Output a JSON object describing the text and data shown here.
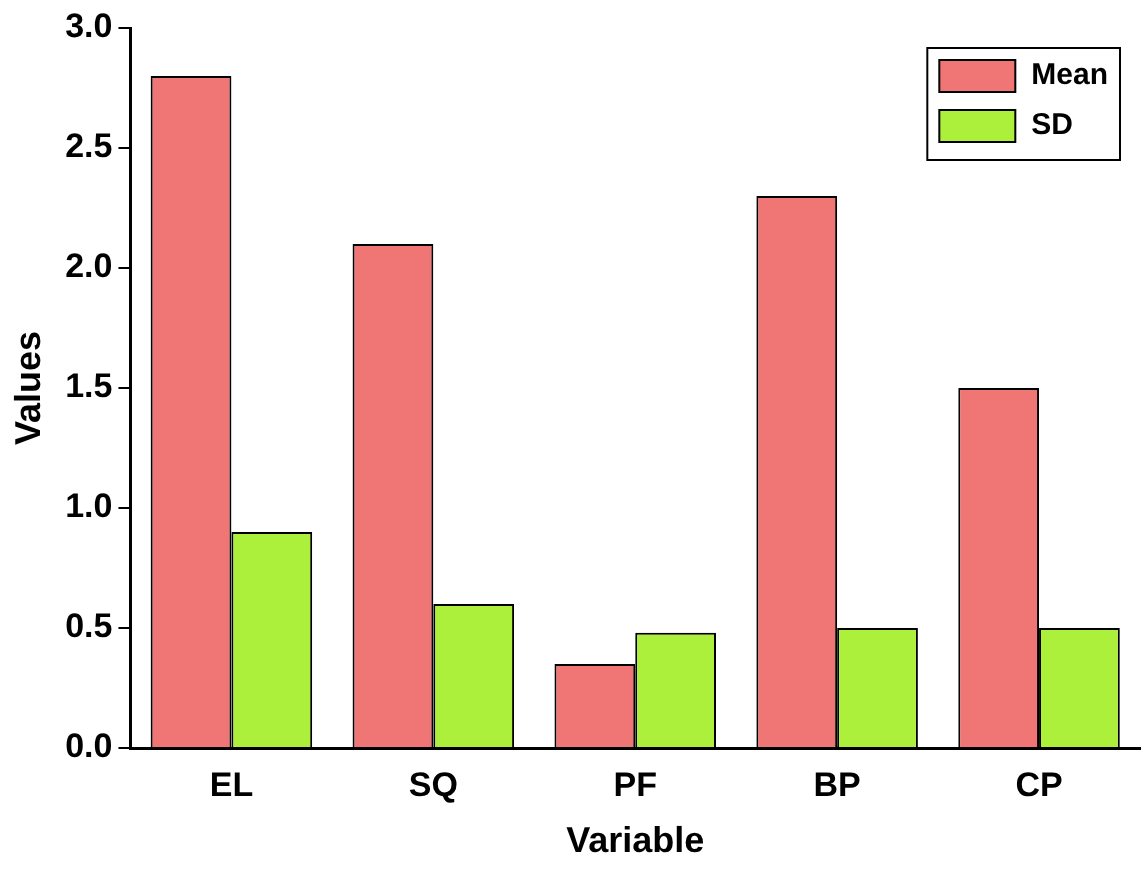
{
  "chart_data": {
    "type": "bar",
    "xlabel": "Variable",
    "ylabel": "Values",
    "categories": [
      "EL",
      "SQ",
      "PF",
      "BP",
      "CP"
    ],
    "series": [
      {
        "name": "Mean",
        "color": "#f07575",
        "values": [
          2.8,
          2.1,
          0.35,
          2.3,
          1.5
        ]
      },
      {
        "name": "SD",
        "color": "#adf03c",
        "values": [
          0.9,
          0.6,
          0.48,
          0.5,
          0.5
        ]
      }
    ],
    "ylim": [
      0,
      3.0
    ],
    "yticks": [
      {
        "value": 0,
        "label": "0.0"
      },
      {
        "value": 0.5,
        "label": "0.5"
      },
      {
        "value": 1,
        "label": "1.0"
      },
      {
        "value": 1.5,
        "label": "1.5"
      },
      {
        "value": 2,
        "label": "2.0"
      },
      {
        "value": 2.5,
        "label": "2.5"
      },
      {
        "value": 3,
        "label": "3.0"
      }
    ],
    "grid": false,
    "legend": "top right"
  }
}
